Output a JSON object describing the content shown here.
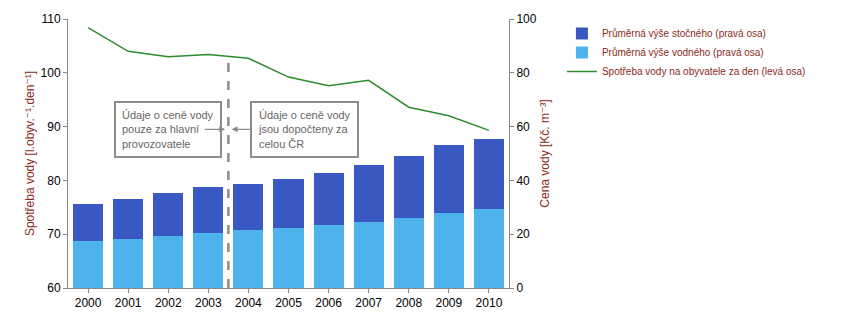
{
  "chart_data": {
    "type": "bar",
    "stacked": true,
    "grid": false,
    "legend": "right",
    "categories": [
      "2000",
      "2001",
      "2002",
      "2003",
      "2004",
      "2005",
      "2006",
      "2007",
      "2008",
      "2009",
      "2010"
    ],
    "series": [
      {
        "name": "Průměrná výše vodného (pravá osa)",
        "type": "bar",
        "axis": "y2",
        "color": "#4db3ea",
        "values": [
          17.6,
          18.4,
          19.4,
          20.6,
          21.4,
          22.2,
          23.4,
          24.6,
          26.2,
          28.0,
          29.2
        ]
      },
      {
        "name": "Průměrná výše stočného (pravá osa)",
        "type": "bar",
        "axis": "y2",
        "color": "#3a58c2",
        "values": [
          13.6,
          14.6,
          16.0,
          17.0,
          17.4,
          18.4,
          19.4,
          21.2,
          23.0,
          25.2,
          26.2
        ]
      },
      {
        "name": "Spotřeba vody na obyvatele za den (levá osa)",
        "type": "line",
        "axis": "y",
        "color": "#2e8b2e",
        "values": [
          108.4,
          104.0,
          103.0,
          103.4,
          102.7,
          99.2,
          97.6,
          98.6,
          93.6,
          92.0,
          89.3
        ]
      }
    ],
    "y_label": "Spotřeba vody [l.obyv.⁻¹.den⁻¹]",
    "ylim": [
      60,
      110
    ],
    "yticks": [
      60,
      70,
      80,
      90,
      100,
      110
    ],
    "y2_label": "Cena vody [Kč. m⁻³]",
    "y2lim": [
      0,
      100
    ],
    "y2ticks": [
      0,
      20,
      40,
      60,
      80,
      100
    ],
    "annotations": [
      {
        "text": "Údaje o ceně vody\npouze za hlavní\nprovozovatele"
      },
      {
        "text": "Údaje o ceně vody\njsou dopočteny za\ncelou ČR"
      }
    ]
  }
}
